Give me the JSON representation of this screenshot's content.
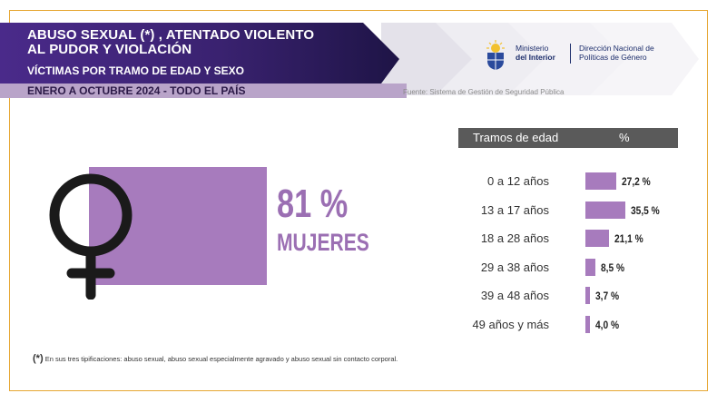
{
  "header": {
    "title_line1": "ABUSO SEXUAL (*) , ATENTADO VIOLENTO",
    "title_line2": "AL PUDOR Y VIOLACIÓN",
    "subtitle": "VÍCTIMAS POR TRAMO DE EDAD Y SEXO",
    "period": "ENERO A OCTUBRE 2024 - TODO EL PAÍS",
    "source": "Fuente: Sistema de Gestión de Seguridad Pública"
  },
  "logos": {
    "ministry_line1": "Ministerio",
    "ministry_line2": "del Interior",
    "direction_line1": "Dirección Nacional de",
    "direction_line2": "Políticas de Género"
  },
  "highlight": {
    "percent": "81 %",
    "label": "MUJERES",
    "value": 81
  },
  "table": {
    "col_age": "Tramos de edad",
    "col_pct": "%"
  },
  "chart_data": {
    "type": "bar",
    "orientation": "horizontal",
    "categories": [
      "0 a 12 años",
      "13 a 17 años",
      "18 a 28 años",
      "29 a 38 años",
      "39 a 48 años",
      "49 años y más"
    ],
    "values": [
      27.2,
      35.5,
      21.1,
      8.5,
      3.7,
      4.0
    ],
    "value_labels": [
      "27,2 %",
      "35,5 %",
      "21,1 %",
      "8,5 %",
      "3,7 %",
      "4,0 %"
    ],
    "color": "#a77bbd"
  },
  "footnote": {
    "mark": "(*)",
    "text": " En sus tres tipificaciones: abuso sexual, abuso sexual especialmente agravado y abuso sexual sin contacto corporal."
  },
  "colors": {
    "accent": "#a77bbd",
    "header_dark": "#2d1b5e",
    "header_purple": "#6d3fa8",
    "frame": "#e6a733"
  }
}
